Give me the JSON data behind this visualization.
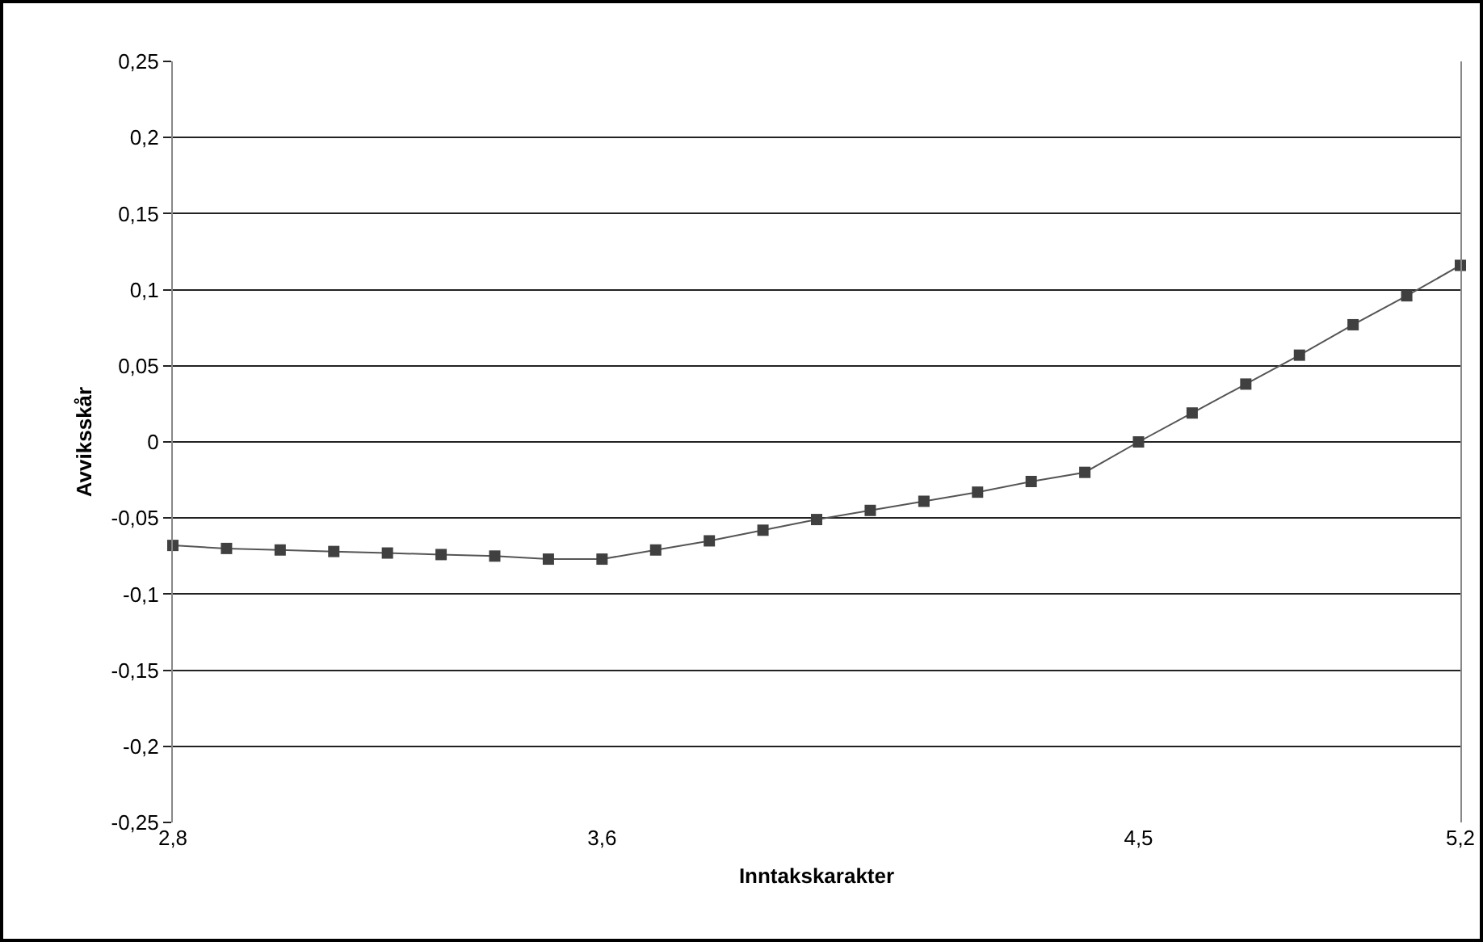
{
  "chart_data": {
    "type": "line",
    "xlabel": "Inntakskarakter",
    "ylabel": "Avviksskår",
    "categories": [
      "2,8",
      null,
      null,
      null,
      null,
      null,
      null,
      null,
      "3,6",
      null,
      null,
      null,
      null,
      null,
      null,
      null,
      null,
      null,
      "4,5",
      null,
      null,
      null,
      null,
      null,
      "5,2"
    ],
    "series": [
      {
        "color": "#404040",
        "values": [
          -0.068,
          -0.07,
          -0.071,
          -0.072,
          -0.073,
          -0.074,
          -0.075,
          -0.077,
          -0.077,
          -0.071,
          -0.065,
          -0.058,
          -0.051,
          -0.045,
          -0.039,
          -0.033,
          -0.026,
          -0.02,
          0.0,
          0.019,
          0.038,
          0.057,
          0.077,
          0.096,
          0.116
        ]
      }
    ],
    "ylim": [
      -0.25,
      0.25
    ],
    "yticks": [
      {
        "value": -0.25,
        "label": "-0,25"
      },
      {
        "value": -0.2,
        "label": "-0,2"
      },
      {
        "value": -0.15,
        "label": "-0,15"
      },
      {
        "value": -0.1,
        "label": "-0,1"
      },
      {
        "value": -0.05,
        "label": "-0,05"
      },
      0,
      {
        "value": 0.05,
        "label": "0,05"
      },
      {
        "value": 0.1,
        "label": "0,1"
      },
      {
        "value": 0.15,
        "label": "0,15"
      },
      {
        "value": 0.2,
        "label": "0,2"
      },
      {
        "value": 0.25,
        "label": "0,25"
      }
    ],
    "grid": "y",
    "marker": "square",
    "line_style": "solid"
  }
}
